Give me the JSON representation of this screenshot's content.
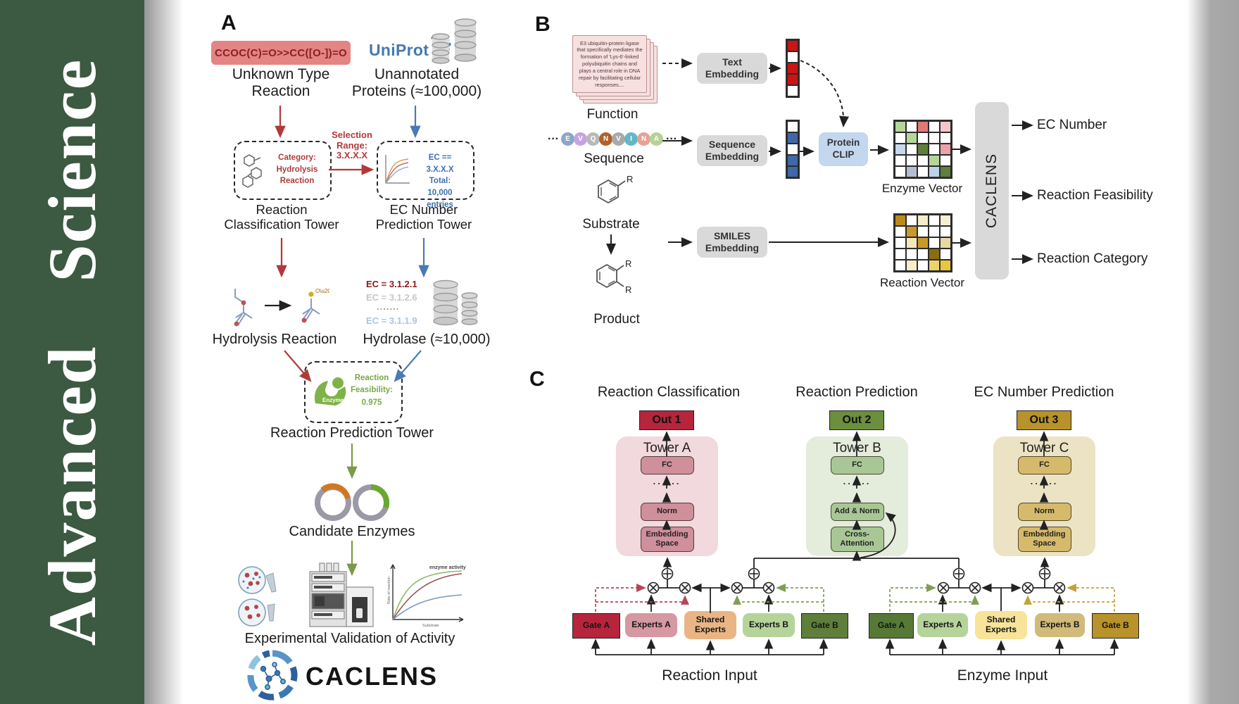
{
  "journal": {
    "name": "Advanced Science",
    "bar_color": "#3c5941"
  },
  "panelA": {
    "label": "A",
    "smiles": "CCOC(C)=O>>CC([O-])=O",
    "unknown": [
      "Unknown Type",
      "Reaction"
    ],
    "uniprot": "UniProt",
    "unannotated": [
      "Unannotated",
      "Proteins (≈100,000)"
    ],
    "selection": [
      "Selection",
      "Range:",
      "3.X.X.X"
    ],
    "category": [
      "Category:",
      "Hydrolysis",
      "Reaction"
    ],
    "ecbox": [
      "EC == 3.X.X.X",
      "Total: 10,000",
      "entries"
    ],
    "rc_tower": [
      "Reaction",
      "Classification Tower"
    ],
    "ec_tower": [
      "EC Number",
      "Prediction Tower"
    ],
    "ec_list": [
      "EC = 3.1.2.1",
      "EC = 3.1.2.6",
      ".......",
      "EC = 3.1.1.9"
    ],
    "hydrolysis": "Hydrolysis Reaction",
    "hydrolase": "Hydrolase (≈10,000)",
    "enzyme_badge": "Enzyme",
    "feasibility": [
      "Reaction",
      "Feasibility:",
      "0.975"
    ],
    "rp_tower": "Reaction Prediction Tower",
    "candidate": "Candidate Enzymes",
    "graph": {
      "curve_label": "enzyme activity",
      "ylabel": "Rate of reaction",
      "xlabel": "Substrate"
    },
    "validation": "Experimental Validation of Activity",
    "logo_text": "CACLENS",
    "accent_red": "#b03a3a",
    "accent_blue": "#4a7ab5",
    "accent_green": "#7a9a4a"
  },
  "panelB": {
    "label": "B",
    "function_text": "E3 ubiquitin-protein ligase that specifically mediates the formation of 'Lys-6'-linked polyubiquitin chains and plays a central role in DNA repair by facilitating cellular responses....",
    "function_label": "Function",
    "sequence_label": "Sequence",
    "dots": "···",
    "sequence_letters": [
      {
        "ch": "E",
        "color": "#8ca6c6"
      },
      {
        "ch": "V",
        "color": "#c5a3e3"
      },
      {
        "ch": "Q",
        "color": "#b9b9b9"
      },
      {
        "ch": "N",
        "color": "#b06227"
      },
      {
        "ch": "V",
        "color": "#a9a9a9"
      },
      {
        "ch": "I",
        "color": "#62b8c4"
      },
      {
        "ch": "N",
        "color": "#e5a394"
      },
      {
        "ch": "A",
        "color": "#b6d294"
      }
    ],
    "substrate_label": "Substrate",
    "product_label": "Product",
    "r_group": "R",
    "text_embedding": "Text Embedding",
    "sequence_embedding": "Sequence Embedding",
    "smiles_embedding": "SMILES Embedding",
    "protein_clip": "Protein CLIP",
    "enzyme_vector_label": "Enzyme Vector",
    "reaction_vector_label": "Reaction Vector",
    "caclens": "CACLENS",
    "outputs": [
      "EC Number",
      "Reaction Feasibility",
      "Reaction Category"
    ],
    "text_vector": [
      "#cc1414",
      "#ffffff",
      "#cc1414",
      "#cc1414",
      "#ffffff"
    ],
    "seq_vector": [
      "#ffffff",
      "#3f68a8",
      "#ffffff",
      "#3f68a8",
      "#3f68a8"
    ],
    "enzyme_matrix": [
      [
        "#b7d49a",
        "#ffffff",
        "#e07878",
        "#ffffff",
        "#f3c6cb"
      ],
      [
        "#ffffff",
        "#b7d49a",
        "#ffffff",
        "#ffffff",
        "#ffffff"
      ],
      [
        "#c6d8ee",
        "#ffffff",
        "#5f7f3a",
        "#ffffff",
        "#eda0a8"
      ],
      [
        "#ffffff",
        "#ffffff",
        "#ffffff",
        "#b7d49a",
        "#ffffff"
      ],
      [
        "#ffffff",
        "#b3bfd1",
        "#ffffff",
        "#bcd2ea",
        "#5f7f3a"
      ]
    ],
    "reaction_matrix": [
      [
        "#bb8a1a",
        "#ffffff",
        "#f5ecc8",
        "#ffffff",
        "#f7efd2"
      ],
      [
        "#ffffff",
        "#c9992a",
        "#ffffff",
        "#ffffff",
        "#ffffff"
      ],
      [
        "#ffffff",
        "#f2e7bb",
        "#c9992a",
        "#ffffff",
        "#e8d9a0"
      ],
      [
        "#ffffff",
        "#ffffff",
        "#ffffff",
        "#8a6d12",
        "#ffffff"
      ],
      [
        "#ffffff",
        "#f5ecc8",
        "#ffffff",
        "#ecd26a",
        "#e8c83a"
      ]
    ]
  },
  "panelC": {
    "label": "C",
    "columns": [
      {
        "heading": "Reaction Classification",
        "out": "Out 1",
        "tower": "Tower A",
        "layers": [
          "FC",
          "......",
          "Norm",
          "Embedding Space"
        ],
        "out_color": "#b6253c",
        "tower_bg": "#f2d9de",
        "layer_bg": "#cf8f9b"
      },
      {
        "heading": "Reaction Prediction",
        "out": "Out 2",
        "tower": "Tower B",
        "layers": [
          "FC",
          "......",
          "Add & Norm",
          "Cross-Attention"
        ],
        "out_color": "#6b8f3c",
        "tower_bg": "#e4ecdc",
        "layer_bg": "#a9c795"
      },
      {
        "heading": "EC Number Prediction",
        "out": "Out 3",
        "tower": "Tower C",
        "layers": [
          "FC",
          "......",
          "Norm",
          "Embedding Space"
        ],
        "out_color": "#b8922a",
        "tower_bg": "#ece3c4",
        "layer_bg": "#d6ba6b"
      }
    ],
    "moe": {
      "left": {
        "boxes": [
          "Gate A",
          "Experts A",
          "Shared Experts",
          "Experts B",
          "Gate B"
        ],
        "colors": [
          "#b6253c",
          "#d698a2",
          "#eab584",
          "#b5d49a",
          "#5e7e3c"
        ],
        "input": "Reaction Input"
      },
      "right": {
        "boxes": [
          "Gate A",
          "Experts A",
          "Shared Experts",
          "Experts B",
          "Gate B"
        ],
        "colors": [
          "#567a36",
          "#b5d49a",
          "#f7e49a",
          "#d1ba7a",
          "#b8922a"
        ],
        "input": "Enzyme Input"
      }
    }
  }
}
